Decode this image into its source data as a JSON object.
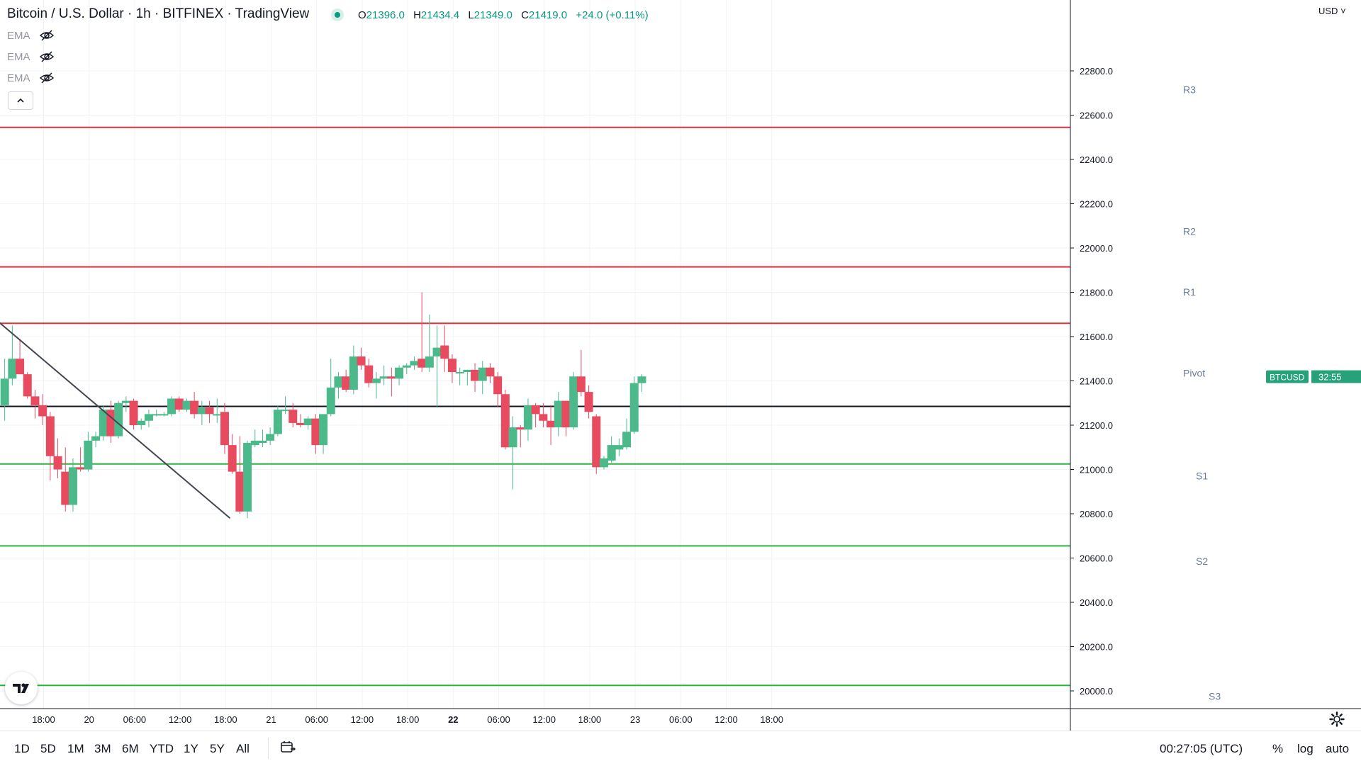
{
  "header": {
    "title": "Bitcoin / U.S. Dollar · 1h · BITFINEX · TradingView",
    "ohlc": {
      "o_label": "O",
      "o": "21396.0",
      "h_label": "H",
      "h": "21434.4",
      "l_label": "L",
      "l": "21349.0",
      "c_label": "C",
      "c": "21419.0",
      "change": "+24.0 (+0.11%)"
    }
  },
  "indicators": [
    "EMA",
    "EMA",
    "EMA"
  ],
  "currency": "USD",
  "time_ranges": [
    "1D",
    "5D",
    "1M",
    "3M",
    "6M",
    "YTD",
    "1Y",
    "5Y",
    "All"
  ],
  "status": {
    "clock": "00:27:05 (UTC)",
    "percent": "%",
    "log": "log",
    "auto": "auto"
  },
  "colors": {
    "up": "#4CB98B",
    "down": "#E84A5F",
    "resistance": "#E0323C",
    "support": "#2BB33C",
    "pivot": "#131722",
    "label": "#6A7B9A",
    "tag": "#26A17A"
  },
  "chart_data": {
    "type": "candlestick",
    "title": "Bitcoin / U.S. Dollar · 1h · BITFINEX",
    "ylim": [
      19920,
      23120
    ],
    "yticks": [
      22800,
      22600,
      22400,
      22200,
      22000,
      21800,
      21600,
      21400,
      21200,
      21000,
      20800,
      20600,
      20400,
      20200,
      20000
    ],
    "ytick_labels": [
      "22800.0",
      "22600.0",
      "22400.0",
      "22200.0",
      "22000.0",
      "21800.0",
      "21600.0",
      "21400.0",
      "21200.0",
      "21000.0",
      "20800.0",
      "20600.0",
      "20400.0",
      "20200.0",
      "20000.0"
    ],
    "bar_range": [
      -3,
      75
    ],
    "xticks": [
      {
        "bar": 0,
        "label": "18:00",
        "bold": false
      },
      {
        "bar": 6,
        "label": "20",
        "bold": false
      },
      {
        "bar": 12,
        "label": "06:00",
        "bold": false
      },
      {
        "bar": 18,
        "label": "12:00",
        "bold": false
      },
      {
        "bar": 24,
        "label": "18:00",
        "bold": false
      },
      {
        "bar": 30,
        "label": "21",
        "bold": false
      },
      {
        "bar": 36,
        "label": "06:00",
        "bold": false
      },
      {
        "bar": 42,
        "label": "12:00",
        "bold": false
      },
      {
        "bar": 48,
        "label": "18:00",
        "bold": false
      },
      {
        "bar": 54,
        "label": "22",
        "bold": true
      },
      {
        "bar": 60,
        "label": "06:00",
        "bold": false
      },
      {
        "bar": 66,
        "label": "12:00",
        "bold": false
      },
      {
        "bar": 72,
        "label": "18:00",
        "bold": false
      },
      {
        "bar": 78,
        "label": "23",
        "bold": false
      },
      {
        "bar": 84,
        "label": "06:00",
        "bold": false
      },
      {
        "bar": 90,
        "label": "12:00",
        "bold": false
      },
      {
        "bar": 96,
        "label": "18:00",
        "bold": false
      }
    ],
    "ohlc": [
      {
        "o": 21290,
        "h": 21500,
        "l": 21220,
        "c": 21410
      },
      {
        "o": 21410,
        "h": 21650,
        "l": 21380,
        "c": 21500
      },
      {
        "o": 21500,
        "h": 21590,
        "l": 21440,
        "c": 21430
      },
      {
        "o": 21430,
        "h": 21440,
        "l": 21320,
        "c": 21330
      },
      {
        "o": 21330,
        "h": 21360,
        "l": 21230,
        "c": 21290
      },
      {
        "o": 21290,
        "h": 21340,
        "l": 21200,
        "c": 21240
      },
      {
        "o": 21240,
        "h": 21260,
        "l": 20950,
        "c": 21060
      },
      {
        "o": 21060,
        "h": 21140,
        "l": 20960,
        "c": 21000
      },
      {
        "o": 20990,
        "h": 21100,
        "l": 20810,
        "c": 20840
      },
      {
        "o": 20840,
        "h": 21050,
        "l": 20810,
        "c": 21010
      },
      {
        "o": 21010,
        "h": 21100,
        "l": 20990,
        "c": 21000
      },
      {
        "o": 21000,
        "h": 21170,
        "l": 20990,
        "c": 21130
      },
      {
        "o": 21130,
        "h": 21170,
        "l": 21100,
        "c": 21150
      },
      {
        "o": 21150,
        "h": 21290,
        "l": 21130,
        "c": 21270
      },
      {
        "o": 21270,
        "h": 21310,
        "l": 21120,
        "c": 21150
      },
      {
        "o": 21150,
        "h": 21310,
        "l": 21140,
        "c": 21300
      },
      {
        "o": 21300,
        "h": 21330,
        "l": 21260,
        "c": 21310
      },
      {
        "o": 21310,
        "h": 21320,
        "l": 21180,
        "c": 21200
      },
      {
        "o": 21200,
        "h": 21230,
        "l": 21180,
        "c": 21220
      },
      {
        "o": 21220,
        "h": 21270,
        "l": 21190,
        "c": 21250
      },
      {
        "o": 21250,
        "h": 21270,
        "l": 21240,
        "c": 21250
      },
      {
        "o": 21250,
        "h": 21260,
        "l": 21240,
        "c": 21250
      },
      {
        "o": 21250,
        "h": 21330,
        "l": 21240,
        "c": 21320
      },
      {
        "o": 21320,
        "h": 21330,
        "l": 21260,
        "c": 21270
      },
      {
        "o": 21270,
        "h": 21320,
        "l": 21260,
        "c": 21310
      },
      {
        "o": 21310,
        "h": 21350,
        "l": 21230,
        "c": 21250
      },
      {
        "o": 21250,
        "h": 21310,
        "l": 21200,
        "c": 21280
      },
      {
        "o": 21280,
        "h": 21310,
        "l": 21210,
        "c": 21250
      },
      {
        "o": 21250,
        "h": 21320,
        "l": 21210,
        "c": 21250
      },
      {
        "o": 21260,
        "h": 21300,
        "l": 21070,
        "c": 21110
      },
      {
        "o": 21110,
        "h": 21160,
        "l": 20980,
        "c": 20990
      },
      {
        "o": 20990,
        "h": 21150,
        "l": 20800,
        "c": 20810
      },
      {
        "o": 20810,
        "h": 21130,
        "l": 20780,
        "c": 21120
      },
      {
        "o": 21110,
        "h": 21180,
        "l": 21100,
        "c": 21130
      },
      {
        "o": 21120,
        "h": 21180,
        "l": 21100,
        "c": 21130
      },
      {
        "o": 21130,
        "h": 21190,
        "l": 21110,
        "c": 21160
      },
      {
        "o": 21160,
        "h": 21290,
        "l": 21150,
        "c": 21270
      },
      {
        "o": 21270,
        "h": 21330,
        "l": 21250,
        "c": 21270
      },
      {
        "o": 21270,
        "h": 21300,
        "l": 21190,
        "c": 21210
      },
      {
        "o": 21210,
        "h": 21250,
        "l": 21190,
        "c": 21200
      },
      {
        "o": 21200,
        "h": 21240,
        "l": 21180,
        "c": 21230
      },
      {
        "o": 21230,
        "h": 21250,
        "l": 21070,
        "c": 21110
      },
      {
        "o": 21110,
        "h": 21240,
        "l": 21070,
        "c": 21250
      },
      {
        "o": 21250,
        "h": 21500,
        "l": 21240,
        "c": 21370
      },
      {
        "o": 21370,
        "h": 21440,
        "l": 21320,
        "c": 21420
      },
      {
        "o": 21420,
        "h": 21450,
        "l": 21350,
        "c": 21360
      },
      {
        "o": 21360,
        "h": 21560,
        "l": 21340,
        "c": 21510
      },
      {
        "o": 21510,
        "h": 21550,
        "l": 21450,
        "c": 21470
      },
      {
        "o": 21470,
        "h": 21500,
        "l": 21370,
        "c": 21390
      },
      {
        "o": 21390,
        "h": 21440,
        "l": 21320,
        "c": 21410
      },
      {
        "o": 21410,
        "h": 21470,
        "l": 21380,
        "c": 21420
      },
      {
        "o": 21420,
        "h": 21460,
        "l": 21330,
        "c": 21410
      },
      {
        "o": 21410,
        "h": 21470,
        "l": 21380,
        "c": 21460
      },
      {
        "o": 21460,
        "h": 21480,
        "l": 21430,
        "c": 21470
      },
      {
        "o": 21470,
        "h": 21510,
        "l": 21450,
        "c": 21490
      },
      {
        "o": 21500,
        "h": 21800,
        "l": 21440,
        "c": 21460
      },
      {
        "o": 21460,
        "h": 21700,
        "l": 21440,
        "c": 21510
      },
      {
        "o": 21510,
        "h": 21650,
        "l": 21280,
        "c": 21550
      },
      {
        "o": 21560,
        "h": 21650,
        "l": 21440,
        "c": 21500
      },
      {
        "o": 21500,
        "h": 21520,
        "l": 21390,
        "c": 21440
      },
      {
        "o": 21440,
        "h": 21460,
        "l": 21380,
        "c": 21440
      },
      {
        "o": 21440,
        "h": 21450,
        "l": 21380,
        "c": 21450
      }
    ],
    "ohlc_b": [
      {
        "o": 21450,
        "h": 21480,
        "l": 21350,
        "c": 21400
      },
      {
        "o": 21400,
        "h": 21490,
        "l": 21340,
        "c": 21460
      },
      {
        "o": 21460,
        "h": 21480,
        "l": 21390,
        "c": 21420
      },
      {
        "o": 21420,
        "h": 21440,
        "l": 21280,
        "c": 21340
      },
      {
        "o": 21340,
        "h": 21360,
        "l": 21090,
        "c": 21100
      },
      {
        "o": 21100,
        "h": 21240,
        "l": 20910,
        "c": 21190
      },
      {
        "o": 21190,
        "h": 21200,
        "l": 21100,
        "c": 21180
      },
      {
        "o": 21180,
        "h": 21320,
        "l": 21130,
        "c": 21290
      },
      {
        "o": 21290,
        "h": 21300,
        "l": 21190,
        "c": 21250
      },
      {
        "o": 21250,
        "h": 21300,
        "l": 21190,
        "c": 21220
      },
      {
        "o": 21220,
        "h": 21290,
        "l": 21110,
        "c": 21190
      },
      {
        "o": 21190,
        "h": 21350,
        "l": 21150,
        "c": 21310
      },
      {
        "o": 21310,
        "h": 21310,
        "l": 21150,
        "c": 21190
      },
      {
        "o": 21190,
        "h": 21440,
        "l": 21180,
        "c": 21420
      },
      {
        "o": 21420,
        "h": 21540,
        "l": 21330,
        "c": 21350
      },
      {
        "o": 21350,
        "h": 21380,
        "l": 21230,
        "c": 21260
      },
      {
        "o": 21240,
        "h": 21250,
        "l": 20980,
        "c": 21010
      },
      {
        "o": 21010,
        "h": 21060,
        "l": 21000,
        "c": 21050
      },
      {
        "o": 21040,
        "h": 21150,
        "l": 21030,
        "c": 21110
      },
      {
        "o": 21090,
        "h": 21140,
        "l": 21060,
        "c": 21110
      },
      {
        "o": 21100,
        "h": 21230,
        "l": 21090,
        "c": 21170
      },
      {
        "o": 21170,
        "h": 21420,
        "l": 21160,
        "c": 21390
      },
      {
        "o": 21390,
        "h": 21430,
        "l": 21350,
        "c": 21420
      }
    ],
    "levels": [
      {
        "name": "R3",
        "value": 22545,
        "label_value": 22700,
        "kind": "resistance"
      },
      {
        "name": "R2",
        "value": 21915,
        "label_value": 22060,
        "kind": "resistance"
      },
      {
        "name": "R1",
        "value": 21660,
        "label_value": 21785,
        "kind": "resistance"
      },
      {
        "name": "Pivot",
        "value": 21285,
        "label_value": 21420,
        "kind": "pivot"
      },
      {
        "name": "S1",
        "value": 21025,
        "label_value": 20955,
        "kind": "support"
      },
      {
        "name": "S2",
        "value": 20655,
        "label_value": 20570,
        "kind": "support"
      },
      {
        "name": "S3",
        "value": 20025,
        "label_value": 19960,
        "kind": "support"
      }
    ],
    "trendline": {
      "from": {
        "bar": -3,
        "value": 21730
      },
      "to": {
        "bar": 29.7,
        "value": 20780
      }
    },
    "price_tag": {
      "symbol": "BTCUSD",
      "countdown": "32:55",
      "value": 21419
    }
  }
}
